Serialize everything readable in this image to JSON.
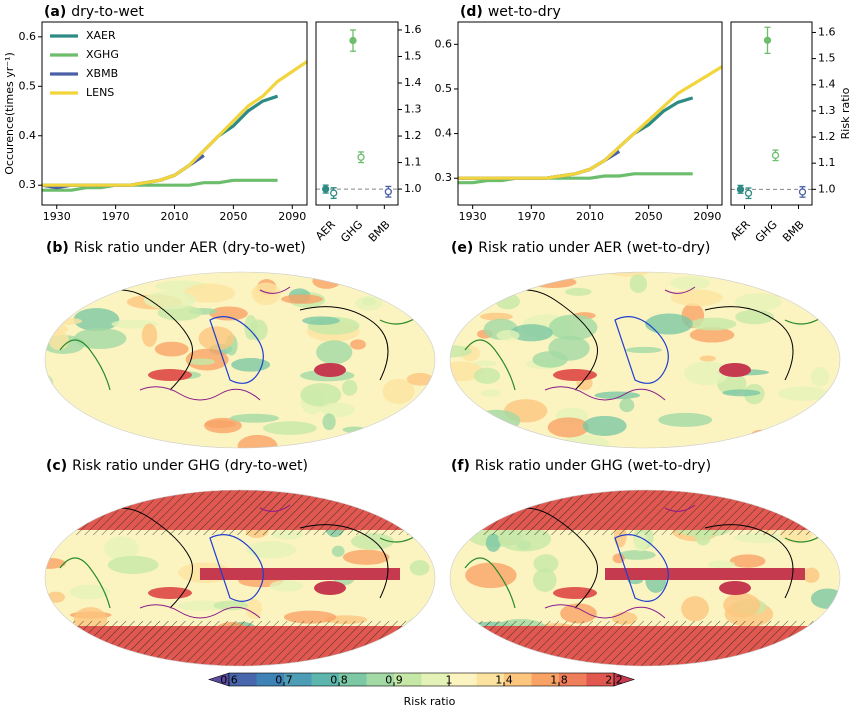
{
  "chart_data": [
    {
      "type": "line",
      "label": "(a)",
      "title": "dry-to-wet",
      "ylabel": "Occurence(times yr⁻¹)",
      "x": [
        1920,
        1930,
        1940,
        1950,
        1960,
        1970,
        1980,
        1990,
        2000,
        2010,
        2020,
        2030,
        2040,
        2050,
        2060,
        2070,
        2080,
        2090,
        2100
      ],
      "xlim": [
        1920,
        2100
      ],
      "xticks": [
        1930,
        1970,
        2010,
        2050,
        2090
      ],
      "ylim": [
        0.26,
        0.63
      ],
      "yticks": [
        0.3,
        0.4,
        0.5,
        0.6
      ],
      "legend": "upper left",
      "series": [
        {
          "name": "XAER",
          "color": "#2e8b84",
          "values": [
            0.3,
            0.3,
            0.3,
            0.3,
            0.3,
            0.3,
            0.3,
            0.305,
            0.31,
            0.32,
            0.34,
            0.37,
            0.4,
            0.42,
            0.45,
            0.47,
            0.48,
            null,
            null
          ]
        },
        {
          "name": "XGHG",
          "color": "#6cbd6c",
          "values": [
            0.29,
            0.29,
            0.29,
            0.295,
            0.295,
            0.3,
            0.3,
            0.3,
            0.3,
            0.3,
            0.3,
            0.305,
            0.305,
            0.31,
            0.31,
            0.31,
            0.31,
            null,
            null
          ]
        },
        {
          "name": "XBMB",
          "color": "#4a5fa8",
          "values": [
            0.3,
            0.295,
            0.3,
            0.3,
            0.3,
            0.3,
            0.3,
            0.305,
            0.31,
            0.32,
            0.34,
            0.36,
            null,
            null,
            null,
            null,
            null,
            null,
            null
          ]
        },
        {
          "name": "LENS",
          "color": "#f2d43c",
          "values": [
            0.3,
            0.3,
            0.3,
            0.3,
            0.3,
            0.3,
            0.3,
            0.305,
            0.31,
            0.32,
            0.34,
            0.37,
            0.4,
            0.43,
            0.46,
            0.48,
            0.51,
            0.53,
            0.55
          ]
        }
      ]
    },
    {
      "type": "errorbar",
      "categories": [
        "AER",
        "GHG",
        "BMB"
      ],
      "colors": [
        "#2e8b84",
        "#6cbd6c",
        "#4a5fa8"
      ],
      "ylim": [
        0.94,
        1.63
      ],
      "yticks": [
        {
          "value": 1,
          "label": "1.0"
        },
        {
          "value": 1.1,
          "label": "1.1"
        },
        {
          "value": 1.2,
          "label": "1.2"
        },
        {
          "value": 1.3,
          "label": "1.3"
        },
        {
          "value": 1.4,
          "label": "1.4"
        },
        {
          "value": 1.5,
          "label": "1.5"
        },
        {
          "value": 1.6,
          "label": "1.6"
        }
      ],
      "hline": 1,
      "series": [
        {
          "style": "filled",
          "values": [
            1.0,
            1.56,
            null
          ],
          "errors": [
            0.015,
            0.04,
            null
          ]
        },
        {
          "style": "open",
          "values": [
            0.985,
            1.12,
            0.99
          ],
          "errors": [
            0.02,
            0.02,
            0.02
          ]
        }
      ]
    },
    {
      "type": "line",
      "label": "(d)",
      "title": "wet-to-dry",
      "x": [
        1920,
        1930,
        1940,
        1950,
        1960,
        1970,
        1980,
        1990,
        2000,
        2010,
        2020,
        2030,
        2040,
        2050,
        2060,
        2070,
        2080,
        2090,
        2100
      ],
      "xlim": [
        1920,
        2100
      ],
      "xticks": [
        1930,
        1970,
        2010,
        2050,
        2090
      ],
      "ylim": [
        0.24,
        0.65
      ],
      "yticks": [
        0.3,
        0.4,
        0.5,
        0.6
      ],
      "series": [
        {
          "color": "#2e8b84",
          "values": [
            0.3,
            0.3,
            0.3,
            0.3,
            0.3,
            0.3,
            0.3,
            0.305,
            0.31,
            0.32,
            0.34,
            0.37,
            0.4,
            0.42,
            0.45,
            0.47,
            0.48,
            null,
            null
          ]
        },
        {
          "color": "#6cbd6c",
          "values": [
            0.29,
            0.29,
            0.295,
            0.295,
            0.3,
            0.3,
            0.3,
            0.3,
            0.3,
            0.3,
            0.305,
            0.305,
            0.31,
            0.31,
            0.31,
            0.31,
            0.31,
            null,
            null
          ]
        },
        {
          "color": "#4a5fa8",
          "values": [
            0.3,
            0.3,
            0.3,
            0.3,
            0.3,
            0.3,
            0.3,
            0.305,
            0.31,
            0.32,
            0.34,
            0.36,
            null,
            null,
            null,
            null,
            null,
            null,
            null
          ]
        },
        {
          "color": "#f2d43c",
          "values": [
            0.3,
            0.3,
            0.3,
            0.3,
            0.3,
            0.3,
            0.3,
            0.305,
            0.31,
            0.32,
            0.34,
            0.37,
            0.4,
            0.43,
            0.46,
            0.49,
            0.51,
            0.53,
            0.55
          ]
        }
      ]
    },
    {
      "type": "errorbar",
      "categories": [
        "AER",
        "GHG",
        "BMB"
      ],
      "colors": [
        "#2e8b84",
        "#6cbd6c",
        "#4a5fa8"
      ],
      "ylim": [
        0.94,
        1.64
      ],
      "ylabel": "Risk ratio",
      "yticks": [
        {
          "value": 1,
          "label": "1.0"
        },
        {
          "value": 1.1,
          "label": "1.1"
        },
        {
          "value": 1.2,
          "label": "1.2"
        },
        {
          "value": 1.3,
          "label": "1.3"
        },
        {
          "value": 1.4,
          "label": "1.4"
        },
        {
          "value": 1.5,
          "label": "1.5"
        },
        {
          "value": 1.6,
          "label": "1.6"
        }
      ],
      "hline": 1,
      "series": [
        {
          "style": "filled",
          "values": [
            1.0,
            1.57,
            null
          ],
          "errors": [
            0.015,
            0.05,
            null
          ]
        },
        {
          "style": "open",
          "values": [
            0.985,
            1.13,
            0.99
          ],
          "errors": [
            0.02,
            0.02,
            0.02
          ]
        }
      ]
    }
  ],
  "maps": [
    {
      "label": "(b)",
      "title": "Risk ratio under AER (dry-to-wet)"
    },
    {
      "label": "(e)",
      "title": "Risk ratio under AER (wet-to-dry)"
    },
    {
      "label": "(c)",
      "title": "Risk ratio under GHG (dry-to-wet)"
    },
    {
      "label": "(f)",
      "title": "Risk ratio under GHG (wet-to-dry)"
    }
  ],
  "colorbar": {
    "label": "Risk ratio",
    "ticks": [
      0.6,
      0.7,
      0.8,
      0.9,
      1,
      1.4,
      1.8,
      2.2
    ],
    "colors": [
      "#5b4a9e",
      "#4866ab",
      "#3e82b6",
      "#4c9db5",
      "#5db6ad",
      "#7cc8a4",
      "#a2d9a4",
      "#c6e8a7",
      "#e4f2b8",
      "#fcf4c0",
      "#fde3a0",
      "#fdc67e",
      "#f9a266",
      "#ef7e5a",
      "#e0584f",
      "#c63a4f"
    ]
  }
}
